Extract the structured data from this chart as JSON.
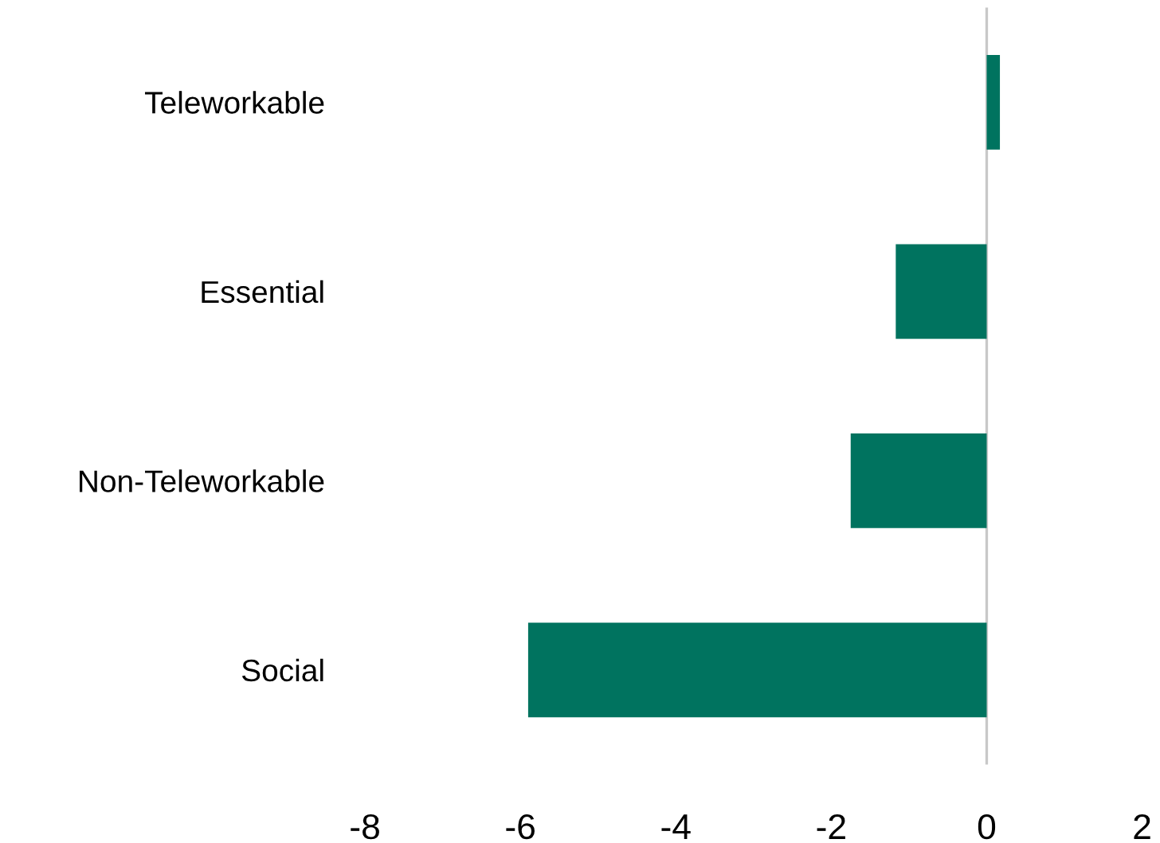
{
  "chart_data": {
    "type": "bar",
    "orientation": "horizontal",
    "categories": [
      "Teleworkable",
      "Essential",
      "Non-Teleworkable",
      "Social"
    ],
    "values": [
      0.17,
      -1.17,
      -1.75,
      -5.9
    ],
    "color": "#00735f",
    "xlim": [
      -8,
      2
    ],
    "xticks": [
      -8,
      -6,
      -4,
      -2,
      0,
      2
    ],
    "ref_lines": [
      {
        "axis": "x",
        "value": 0,
        "color": "#c8c8c8"
      }
    ]
  }
}
